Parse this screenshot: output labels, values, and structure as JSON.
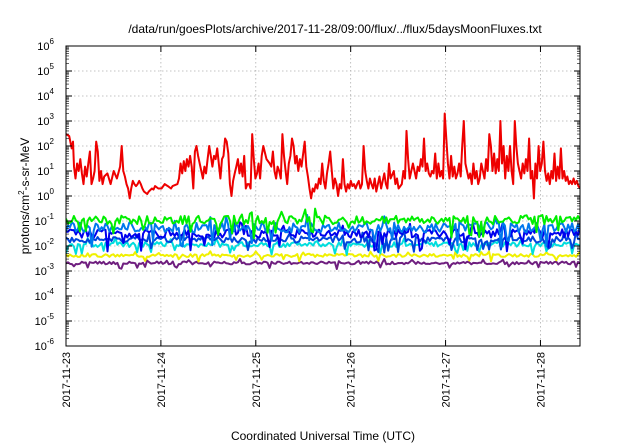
{
  "chart_data": {
    "type": "line",
    "title": "/data/run/goesPlots/archive/2017-11-28/09:00/flux/../flux/5daysMoonFluxes.txt",
    "xlabel": "Coordinated Universal Time (UTC)",
    "ylabel": {
      "parts": [
        {
          "text": "protons/cm",
          "sup": false
        },
        {
          "text": "2",
          "sup": true
        },
        {
          "text": "-s-sr-MeV",
          "sup": false
        }
      ]
    },
    "x_range": [
      "2017-11-23",
      "2017-11-28T10:00"
    ],
    "x_ticks": [
      "2017-11-23",
      "2017-11-24",
      "2017-11-25",
      "2017-11-26",
      "2017-11-27",
      "2017-11-28"
    ],
    "y_scale": "log",
    "y_range": [
      1e-06,
      1000000.0
    ],
    "y_ticks": [
      {
        "base": "10",
        "exp": "-6"
      },
      {
        "base": "10",
        "exp": "-5"
      },
      {
        "base": "10",
        "exp": "-4"
      },
      {
        "base": "10",
        "exp": "-3"
      },
      {
        "base": "10",
        "exp": "-2"
      },
      {
        "base": "10",
        "exp": "-1"
      },
      {
        "base": "10",
        "exp": "0"
      },
      {
        "base": "10",
        "exp": "1"
      },
      {
        "base": "10",
        "exp": "2"
      },
      {
        "base": "10",
        "exp": "3"
      },
      {
        "base": "10",
        "exp": "4"
      },
      {
        "base": "10",
        "exp": "5"
      },
      {
        "base": "10",
        "exp": "6"
      }
    ],
    "grid": true,
    "series": [
      {
        "color": "#ee0000",
        "points": [
          [
            0.0,
            300
          ],
          [
            0.1,
            250
          ],
          [
            0.18,
            80
          ],
          [
            0.22,
            150
          ],
          [
            0.25,
            15
          ],
          [
            0.3,
            5
          ],
          [
            0.35,
            20
          ],
          [
            0.4,
            10
          ],
          [
            0.45,
            30
          ],
          [
            0.5,
            8
          ],
          [
            0.55,
            3
          ],
          [
            0.6,
            15
          ],
          [
            0.65,
            6
          ],
          [
            0.7,
            20
          ],
          [
            0.75,
            60
          ],
          [
            0.8,
            3
          ],
          [
            0.85,
            5
          ],
          [
            0.9,
            10
          ],
          [
            0.95,
            150
          ],
          [
            1.0,
            60
          ],
          [
            1.05,
            4
          ],
          [
            1.1,
            10
          ],
          [
            1.15,
            3
          ],
          [
            1.2,
            6
          ],
          [
            1.3,
            8
          ],
          [
            1.4,
            3
          ],
          [
            1.5,
            10
          ],
          [
            1.6,
            5
          ],
          [
            1.7,
            15
          ],
          [
            1.75,
            100
          ],
          [
            1.8,
            10
          ],
          [
            1.85,
            6
          ],
          [
            1.9,
            3
          ],
          [
            1.95,
            2
          ],
          [
            2.0,
            0.8
          ],
          [
            2.05,
            2
          ],
          [
            2.1,
            4
          ],
          [
            2.15,
            3
          ],
          [
            2.2,
            2.5
          ],
          [
            2.25,
            3
          ],
          [
            2.3,
            4
          ],
          [
            2.35,
            3
          ],
          [
            2.4,
            2
          ],
          [
            2.45,
            1.5
          ],
          [
            2.55,
            1.2
          ],
          [
            2.6,
            1.5
          ],
          [
            2.7,
            2
          ],
          [
            2.75,
            1.8
          ],
          [
            2.8,
            2.5
          ],
          [
            2.9,
            2
          ],
          [
            3.0,
            2
          ],
          [
            3.1,
            3
          ],
          [
            3.2,
            2.5
          ],
          [
            3.3,
            2
          ],
          [
            3.35,
            2.5
          ],
          [
            3.5,
            3
          ],
          [
            3.55,
            5
          ],
          [
            3.6,
            20
          ],
          [
            3.65,
            8
          ],
          [
            3.7,
            25
          ],
          [
            3.75,
            10
          ],
          [
            3.8,
            30
          ],
          [
            3.85,
            15
          ],
          [
            3.9,
            40
          ],
          [
            3.95,
            15
          ],
          [
            4.0,
            2
          ],
          [
            4.05,
            60
          ],
          [
            4.1,
            100
          ],
          [
            4.15,
            40
          ],
          [
            4.2,
            20
          ],
          [
            4.25,
            10
          ],
          [
            4.3,
            5
          ],
          [
            4.35,
            15
          ],
          [
            4.4,
            8
          ],
          [
            4.45,
            30
          ],
          [
            4.5,
            100
          ],
          [
            4.55,
            40
          ],
          [
            4.6,
            15
          ],
          [
            4.65,
            40
          ],
          [
            4.7,
            30
          ],
          [
            4.75,
            80
          ],
          [
            4.8,
            20
          ],
          [
            4.85,
            5
          ],
          [
            4.9,
            30
          ],
          [
            4.95,
            40
          ],
          [
            5.0,
            200
          ],
          [
            5.05,
            150
          ],
          [
            5.1,
            50
          ],
          [
            5.15,
            3
          ],
          [
            5.2,
            1
          ],
          [
            5.25,
            4
          ],
          [
            5.3,
            8
          ],
          [
            5.35,
            15
          ],
          [
            5.4,
            30
          ],
          [
            5.45,
            8
          ],
          [
            5.5,
            20
          ],
          [
            5.55,
            6
          ],
          [
            5.6,
            40
          ],
          [
            5.65,
            2
          ],
          [
            5.7,
            3
          ],
          [
            5.75,
            3
          ],
          [
            5.8,
            2
          ],
          [
            5.85,
            300
          ],
          [
            5.9,
            30
          ],
          [
            5.95,
            5
          ],
          [
            6.0,
            8
          ],
          [
            6.05,
            20
          ],
          [
            6.1,
            5
          ],
          [
            6.15,
            40
          ],
          [
            6.2,
            100
          ],
          [
            6.3,
            30
          ],
          [
            6.4,
            20
          ],
          [
            6.45,
            15
          ],
          [
            6.5,
            60
          ],
          [
            6.55,
            10
          ],
          [
            6.6,
            5
          ],
          [
            6.65,
            15
          ],
          [
            6.7,
            10
          ],
          [
            6.75,
            5
          ],
          [
            6.8,
            300
          ],
          [
            6.85,
            40
          ],
          [
            6.9,
            10
          ],
          [
            6.95,
            3
          ],
          [
            7.0,
            20
          ],
          [
            7.05,
            40
          ],
          [
            7.1,
            200
          ],
          [
            7.15,
            100
          ],
          [
            7.2,
            20
          ],
          [
            7.25,
            40
          ],
          [
            7.3,
            10
          ],
          [
            7.35,
            30
          ],
          [
            7.4,
            15
          ],
          [
            7.5,
            150
          ],
          [
            7.55,
            15
          ],
          [
            7.6,
            6
          ],
          [
            7.65,
            2
          ],
          [
            7.7,
            0.8
          ],
          [
            7.75,
            2
          ],
          [
            7.8,
            1.5
          ],
          [
            7.85,
            3
          ],
          [
            7.9,
            2
          ],
          [
            7.95,
            5
          ],
          [
            8.0,
            3
          ],
          [
            8.05,
            20
          ],
          [
            8.1,
            4
          ],
          [
            8.15,
            2
          ],
          [
            8.2,
            8
          ],
          [
            8.25,
            20
          ],
          [
            8.3,
            60
          ],
          [
            8.35,
            10
          ],
          [
            8.4,
            2
          ],
          [
            8.45,
            5
          ],
          [
            8.5,
            3
          ],
          [
            8.55,
            1
          ],
          [
            8.6,
            3
          ],
          [
            8.65,
            2
          ],
          [
            8.7,
            30
          ],
          [
            8.75,
            3
          ],
          [
            8.8,
            1.5
          ],
          [
            8.85,
            3
          ],
          [
            8.9,
            2
          ],
          [
            8.95,
            4
          ],
          [
            9.0,
            2.5
          ],
          [
            9.05,
            3
          ],
          [
            9.1,
            2
          ],
          [
            9.15,
            3
          ],
          [
            9.2,
            4
          ],
          [
            9.25,
            2
          ],
          [
            9.3,
            3
          ],
          [
            9.35,
            100
          ],
          [
            9.4,
            10
          ],
          [
            9.45,
            4
          ],
          [
            9.5,
            2
          ],
          [
            9.55,
            5
          ],
          [
            9.6,
            3
          ],
          [
            9.65,
            2
          ],
          [
            9.7,
            5
          ],
          [
            9.75,
            1.5
          ],
          [
            9.8,
            3
          ],
          [
            9.85,
            6
          ],
          [
            9.9,
            2
          ],
          [
            9.95,
            4
          ],
          [
            10.0,
            8
          ],
          [
            10.05,
            3
          ],
          [
            10.1,
            2
          ],
          [
            10.15,
            20
          ],
          [
            10.2,
            5
          ],
          [
            10.3,
            10
          ],
          [
            10.35,
            3
          ],
          [
            10.4,
            5
          ],
          [
            10.45,
            2
          ],
          [
            10.55,
            3
          ],
          [
            10.6,
            10
          ],
          [
            10.65,
            5
          ],
          [
            10.7,
            400
          ],
          [
            10.75,
            30
          ],
          [
            10.8,
            5
          ],
          [
            10.9,
            20
          ],
          [
            10.95,
            10
          ],
          [
            11.0,
            5
          ],
          [
            11.05,
            15
          ],
          [
            11.1,
            10
          ],
          [
            11.15,
            30
          ],
          [
            11.2,
            15
          ],
          [
            11.25,
            200
          ],
          [
            11.3,
            10
          ],
          [
            11.35,
            20
          ],
          [
            11.4,
            8
          ],
          [
            11.45,
            6
          ],
          [
            11.5,
            10
          ],
          [
            11.55,
            8
          ],
          [
            11.6,
            50
          ],
          [
            11.65,
            5
          ],
          [
            11.7,
            20
          ],
          [
            11.75,
            6
          ],
          [
            11.8,
            10
          ],
          [
            11.85,
            5
          ],
          [
            11.9,
            2000
          ],
          [
            12.0,
            20
          ],
          [
            12.05,
            5
          ],
          [
            12.1,
            40
          ],
          [
            12.15,
            6
          ],
          [
            12.2,
            15
          ],
          [
            12.25,
            5
          ],
          [
            12.3,
            8
          ],
          [
            12.35,
            20
          ],
          [
            12.4,
            6
          ],
          [
            12.45,
            100
          ],
          [
            12.5,
            1000
          ],
          [
            12.55,
            20
          ],
          [
            12.6,
            10
          ],
          [
            12.65,
            5
          ],
          [
            12.7,
            8
          ],
          [
            12.75,
            3
          ],
          [
            12.8,
            20
          ],
          [
            12.85,
            5
          ],
          [
            12.9,
            10
          ],
          [
            12.95,
            3
          ],
          [
            13.0,
            5
          ],
          [
            13.05,
            20
          ],
          [
            13.1,
            10
          ],
          [
            13.15,
            5
          ],
          [
            13.2,
            30
          ],
          [
            13.25,
            10
          ],
          [
            13.3,
            300
          ],
          [
            13.35,
            100
          ],
          [
            13.4,
            10
          ],
          [
            13.45,
            50
          ],
          [
            13.5,
            8
          ],
          [
            13.55,
            30
          ],
          [
            13.6,
            10
          ],
          [
            13.65,
            1000
          ],
          [
            13.7,
            20
          ],
          [
            13.75,
            100
          ],
          [
            13.8,
            5
          ],
          [
            13.85,
            40
          ],
          [
            13.9,
            10
          ],
          [
            13.95,
            100
          ],
          [
            14.0,
            10
          ],
          [
            14.05,
            3
          ],
          [
            14.1,
            1000
          ],
          [
            14.15,
            100
          ],
          [
            14.2,
            20
          ],
          [
            14.25,
            10
          ],
          [
            14.3,
            5
          ],
          [
            14.35,
            20
          ],
          [
            14.4,
            8
          ],
          [
            14.45,
            30
          ],
          [
            14.5,
            10
          ],
          [
            14.55,
            200
          ],
          [
            14.6,
            5
          ],
          [
            14.65,
            10
          ],
          [
            14.7,
            0.8
          ],
          [
            14.75,
            20
          ],
          [
            14.8,
            5
          ],
          [
            14.85,
            100
          ],
          [
            14.9,
            10
          ],
          [
            14.95,
            20
          ],
          [
            15.0,
            150
          ],
          [
            15.05,
            10
          ],
          [
            15.1,
            4
          ],
          [
            15.15,
            8
          ],
          [
            15.2,
            3
          ],
          [
            15.25,
            10
          ],
          [
            15.3,
            5
          ],
          [
            15.35,
            50
          ],
          [
            15.4,
            4
          ],
          [
            15.45,
            15
          ],
          [
            15.5,
            5
          ],
          [
            15.55,
            80
          ],
          [
            15.6,
            5
          ],
          [
            15.65,
            10
          ],
          [
            15.7,
            4
          ],
          [
            15.75,
            6
          ],
          [
            15.8,
            3
          ],
          [
            15.85,
            4
          ],
          [
            15.9,
            3
          ],
          [
            15.95,
            5
          ],
          [
            16.0,
            3
          ],
          [
            16.05,
            4
          ],
          [
            16.1,
            2.5
          ],
          [
            16.15,
            2
          ]
        ]
      },
      {
        "color": "#00ee00",
        "base": 0.11,
        "amp": 0.35,
        "seed": 11
      },
      {
        "color": "#0077ee",
        "base": 0.055,
        "amp": 0.4,
        "seed": 23
      },
      {
        "color": "#0000ee",
        "base": 0.032,
        "amp": 0.35,
        "seed": 37
      },
      {
        "color": "#0044dd",
        "base": 0.018,
        "amp": 0.25,
        "seed": 41
      },
      {
        "color": "#00dddd",
        "base": 0.0115,
        "amp": 0.2,
        "seed": 53
      },
      {
        "color": "#f0f000",
        "base": 0.0042,
        "amp": 0.12,
        "seed": 67
      },
      {
        "color": "#6f1f7f",
        "base": 0.0021,
        "amp": 0.12,
        "seed": 79
      }
    ]
  }
}
